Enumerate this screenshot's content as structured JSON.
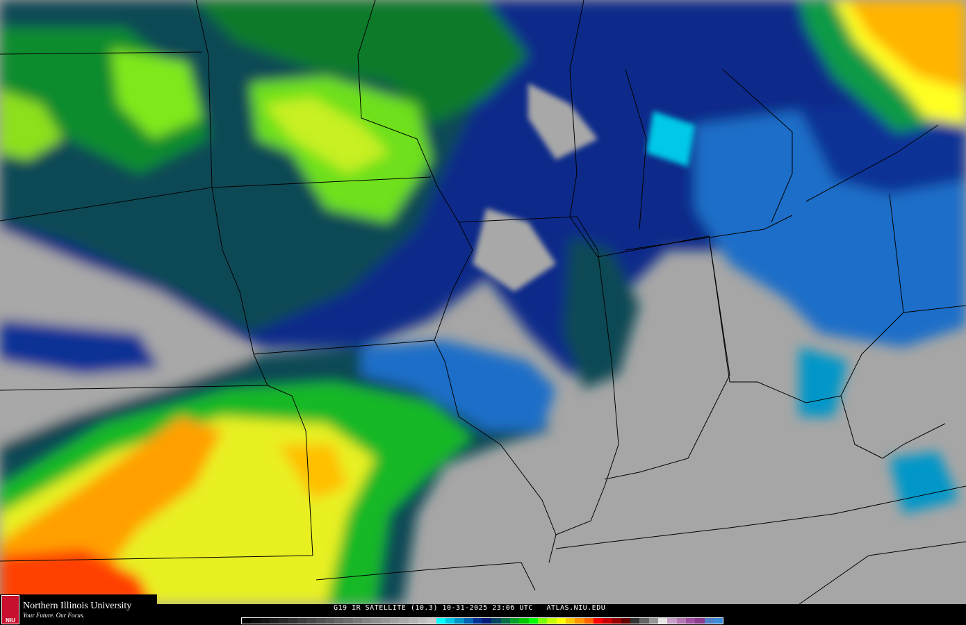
{
  "caption": "G19 IR SATELLITE (10.3) 10-31-2025 23:06 UTC   ATLAS.NIU.EDU",
  "logo": {
    "name": "Northern Illinois University",
    "tagline": "Your Future. Our Focus.",
    "mark": "NIU"
  },
  "colorbar": [
    "#000000",
    "#0a0a0a",
    "#141414",
    "#1e1e1e",
    "#282828",
    "#323232",
    "#3c3c3c",
    "#464646",
    "#505050",
    "#5a5a5a",
    "#646464",
    "#6e6e6e",
    "#787878",
    "#828282",
    "#8c8c8c",
    "#969696",
    "#a0a0a0",
    "#aaaaaa",
    "#b4b4b4",
    "#bebebe",
    "#c8c8c8",
    "#00ffff",
    "#00c8e6",
    "#0096c8",
    "#0064b4",
    "#003296",
    "#001e78",
    "#004660",
    "#006e46",
    "#00a028",
    "#00c800",
    "#00ff00",
    "#78ff00",
    "#c8ff00",
    "#ffff00",
    "#ffc800",
    "#ff9600",
    "#ff6400",
    "#ff0000",
    "#c80000",
    "#960000",
    "#640000",
    "#323232",
    "#646464",
    "#969696",
    "#e6e6e6",
    "#c8a0c8",
    "#b478b4",
    "#a050a0",
    "#8c3c8c",
    "#5080c8",
    "#3c8cdc"
  ],
  "colors": {
    "clear": "#a8a8a8",
    "borders": "#000000"
  }
}
